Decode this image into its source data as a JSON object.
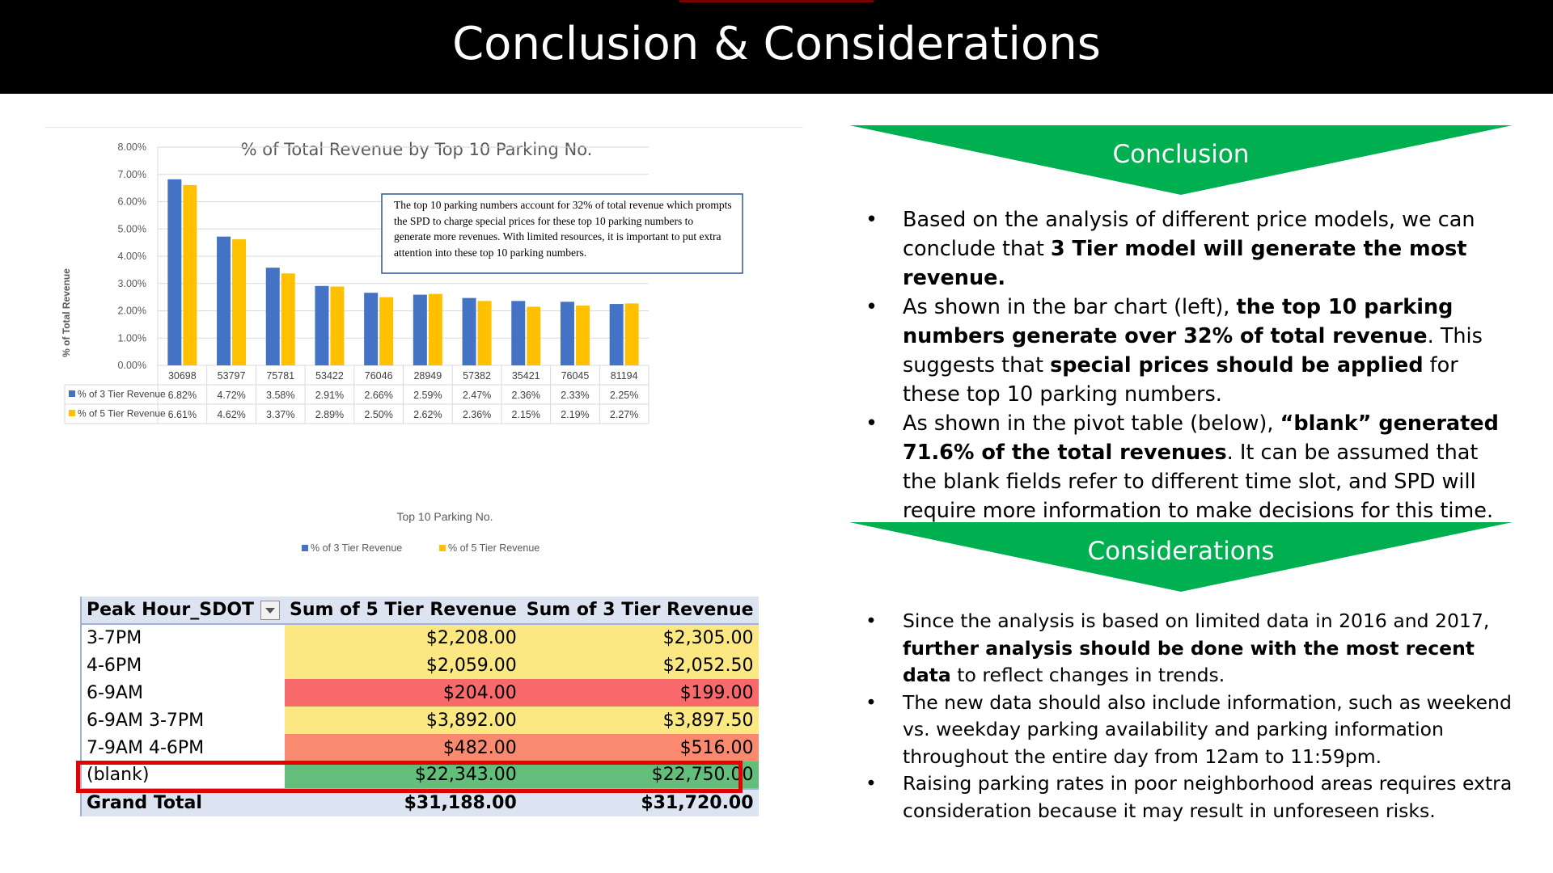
{
  "header": {
    "title": "Conclusion & Considerations"
  },
  "chart_data": {
    "type": "bar",
    "title": "% of Total Revenue by Top 10 Parking No.",
    "xlabel": "Top 10 Parking No.",
    "ylabel": "% of Total Revenue",
    "ylim": [
      0,
      8
    ],
    "y_ticks": [
      "0.00%",
      "1.00%",
      "2.00%",
      "3.00%",
      "4.00%",
      "5.00%",
      "6.00%",
      "7.00%",
      "8.00%"
    ],
    "categories": [
      "30698",
      "53797",
      "75781",
      "53422",
      "76046",
      "28949",
      "57382",
      "35421",
      "76045",
      "81194"
    ],
    "series": [
      {
        "name": "% of  3 Tier Revenue",
        "color": "#4472c4",
        "values": [
          6.82,
          4.72,
          3.58,
          2.91,
          2.66,
          2.59,
          2.47,
          2.36,
          2.33,
          2.25
        ],
        "labels": [
          "6.82%",
          "4.72%",
          "3.58%",
          "2.91%",
          "2.66%",
          "2.59%",
          "2.47%",
          "2.36%",
          "2.33%",
          "2.25%"
        ]
      },
      {
        "name": "%  of 5 Tier Revenue",
        "color": "#ffc000",
        "values": [
          6.61,
          4.62,
          3.37,
          2.89,
          2.5,
          2.62,
          2.36,
          2.15,
          2.19,
          2.27
        ],
        "labels": [
          "6.61%",
          "4.62%",
          "3.37%",
          "2.89%",
          "2.50%",
          "2.62%",
          "2.36%",
          "2.15%",
          "2.19%",
          "2.27%"
        ]
      }
    ],
    "legend_position": "bottom",
    "grid": true,
    "annotation": "The top 10 parking numbers account for 32% of total revenue which prompts the SPD to charge special prices for these top 10 parking numbers to generate more revenues. With limited resources, it is important to put extra attention into these top 10 parking numbers."
  },
  "pivot": {
    "headers": [
      "Peak Hour_SDOT",
      "Sum of 5 Tier Revenue",
      "Sum of 3 Tier Revenue"
    ],
    "rows": [
      {
        "label": "3-7PM",
        "v5": "$2,208.00",
        "v3": "$2,305.00",
        "color": "#fce883"
      },
      {
        "label": "4-6PM",
        "v5": "$2,059.00",
        "v3": "$2,052.50",
        "color": "#fce883"
      },
      {
        "label": "6-9AM",
        "v5": "$204.00",
        "v3": "$199.00",
        "color": "#f8696b"
      },
      {
        "label": "6-9AM 3-7PM",
        "v5": "$3,892.00",
        "v3": "$3,897.50",
        "color": "#fce883"
      },
      {
        "label": "7-9AM 4-6PM",
        "v5": "$482.00",
        "v3": "$516.00",
        "color": "#f98a6f"
      },
      {
        "label": "(blank)",
        "v5": "$22,343.00",
        "v3": "$22,750.00",
        "color": "#63be7b"
      }
    ],
    "total": {
      "label": "Grand Total",
      "v5": "$31,188.00",
      "v3": "$31,720.00"
    }
  },
  "conclusion": {
    "title": "Conclusion",
    "color": "#00b050",
    "b1": {
      "t1": "Based on the analysis of different price models, we can conclude that ",
      "b1": "3 Tier model will generate the most revenue."
    },
    "b2": {
      "t1": "As shown in the bar chart (left), ",
      "b1": "the top 10 parking numbers generate over 32% of total revenue",
      "t2": ". This suggests that ",
      "b2": "special prices should be applied",
      "t3": " for these top 10 parking numbers."
    },
    "b3": {
      "t1": "As shown in the pivot table (below), ",
      "b1": "“blank” generated 71.6% of the total revenues",
      "t2": ". It can be assumed that the blank fields refer to different time slot, and SPD will require more information to make decisions for this time."
    }
  },
  "considerations": {
    "title": "Considerations",
    "b1": {
      "t1": "Since the analysis is based on limited data in 2016 and 2017, ",
      "b1": "further analysis should be done with the most recent data",
      "t2": " to reflect changes in trends."
    },
    "b2": {
      "t1": "The new data should also include information, such as weekend vs. weekday parking availability and parking information throughout the entire day from 12am to 11:59pm."
    },
    "b3": {
      "t1": "Raising parking rates in poor neighborhood areas requires extra consideration because it may result in unforeseen risks."
    }
  }
}
